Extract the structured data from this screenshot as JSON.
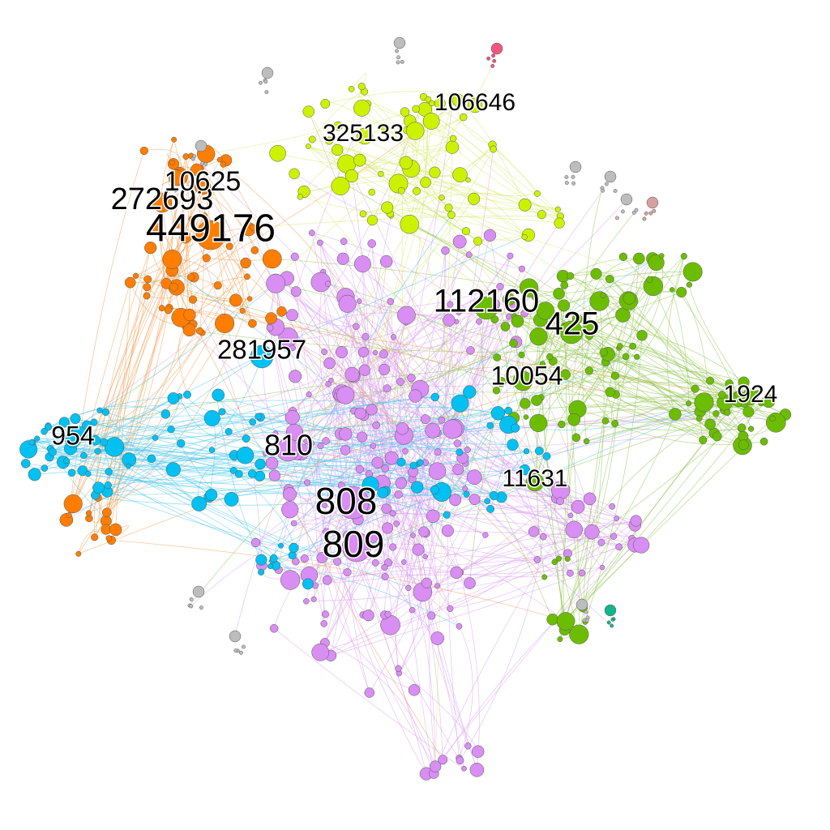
{
  "diagram": {
    "type": "network-graph",
    "colors": {
      "purple": "#d88ef2",
      "green": "#6cbd00",
      "lime": "#cdf200",
      "orange": "#ff7d00",
      "cyan": "#00c1f2",
      "gray": "#bdbdbd",
      "pink": "#f2577d",
      "teal": "#14b48c",
      "rose": "#d7a0a0",
      "edge_purple": "#d89ef0",
      "edge_green": "#8cc24a",
      "edge_lime": "#d6ea66",
      "edge_orange": "#f39a4c",
      "edge_cyan": "#48c6ee"
    },
    "labels": [
      {
        "text": "449176",
        "community": "orange",
        "size": "xlarge"
      },
      {
        "text": "272693",
        "community": "orange",
        "size": "large"
      },
      {
        "text": "10625",
        "community": "orange",
        "size": "medium"
      },
      {
        "text": "325133",
        "community": "lime",
        "size": "medium"
      },
      {
        "text": "106646",
        "community": "lime",
        "size": "medium"
      },
      {
        "text": "281957",
        "community": "cyan",
        "size": "medium"
      },
      {
        "text": "954",
        "community": "cyan",
        "size": "medium"
      },
      {
        "text": "112160",
        "community": "green",
        "size": "large"
      },
      {
        "text": "425",
        "community": "green",
        "size": "large"
      },
      {
        "text": "10054",
        "community": "green",
        "size": "medium"
      },
      {
        "text": "1924",
        "community": "green",
        "size": "medium"
      },
      {
        "text": "11631",
        "community": "green",
        "size": "medium"
      },
      {
        "text": "810",
        "community": "purple",
        "size": "large"
      },
      {
        "text": "808",
        "community": "purple",
        "size": "xlarge"
      },
      {
        "text": "809",
        "community": "purple",
        "size": "xlarge"
      }
    ]
  }
}
